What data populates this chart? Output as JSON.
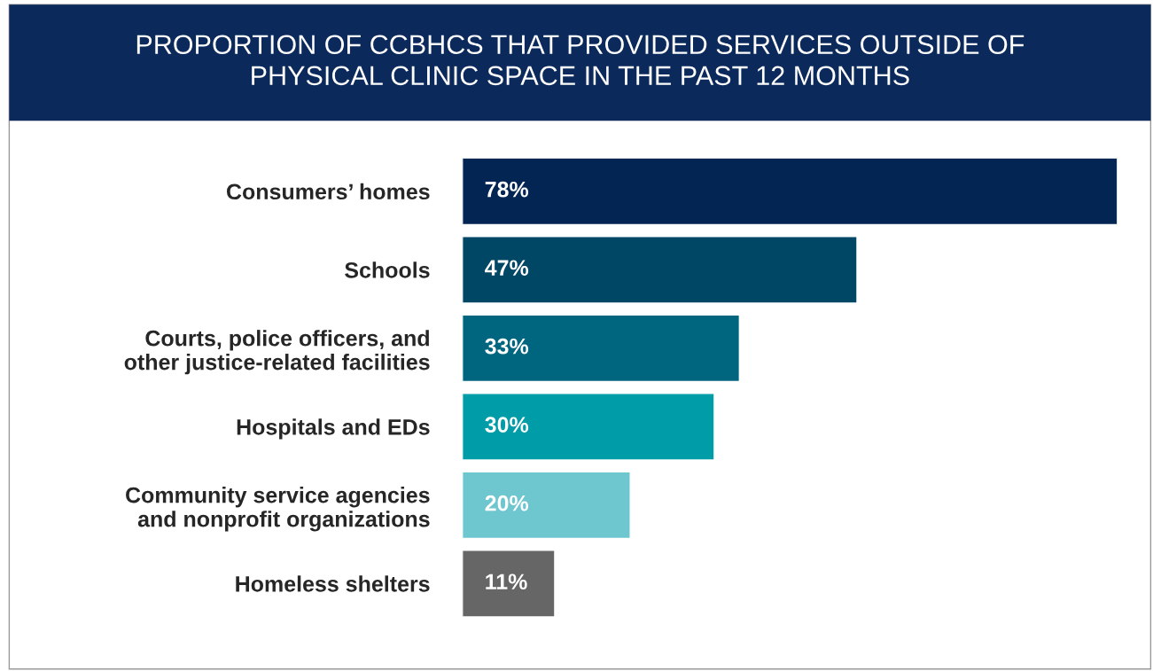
{
  "chart_data": {
    "type": "bar",
    "orientation": "horizontal",
    "title": "PROPORTION OF CCBHCS THAT PROVIDED SERVICES OUTSIDE OF\nPHYSICAL CLINIC SPACE IN THE PAST 12 MONTHS",
    "categories": [
      "Consumers’ homes",
      "Schools",
      "Courts, police officers, and\nother justice-related facilities",
      "Hospitals and EDs",
      "Community service agencies\nand nonprofit organizations",
      "Homeless shelters"
    ],
    "values": [
      78,
      47,
      33,
      30,
      20,
      11
    ],
    "colors": [
      "#032554",
      "#004766",
      "#006680",
      "#009ca8",
      "#6ec6cf",
      "#666666"
    ],
    "value_labels": [
      "78%",
      "47%",
      "33%",
      "30%",
      "20%",
      "11%"
    ],
    "grid": false,
    "legend": false
  }
}
